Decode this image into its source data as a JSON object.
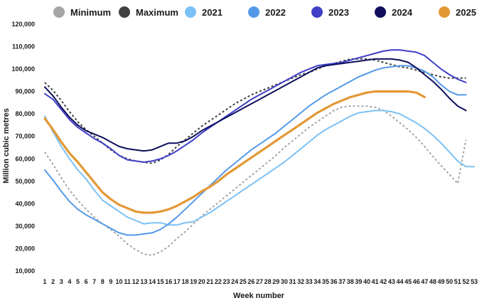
{
  "chart_data": {
    "type": "line",
    "title": "",
    "xlabel": "Week number",
    "ylabel": "Million cubic metres",
    "ylim": [
      10000,
      120000
    ],
    "yticks": [
      10000,
      20000,
      30000,
      40000,
      50000,
      60000,
      70000,
      80000,
      90000,
      100000,
      110000,
      120000
    ],
    "ytick_labels": [
      "10,000",
      "20,000",
      "30,000",
      "40,000",
      "50,000",
      "60,000",
      "70,000",
      "80,000",
      "90,000",
      "100,000",
      "110,000",
      "120,000"
    ],
    "xlim": [
      1,
      53
    ],
    "xticks": [
      1,
      2,
      3,
      4,
      5,
      6,
      7,
      8,
      9,
      10,
      11,
      12,
      13,
      14,
      15,
      16,
      17,
      18,
      19,
      20,
      21,
      22,
      23,
      24,
      25,
      26,
      27,
      28,
      29,
      30,
      31,
      32,
      33,
      34,
      35,
      36,
      37,
      38,
      39,
      40,
      41,
      42,
      43,
      44,
      45,
      46,
      47,
      48,
      49,
      50,
      51,
      52,
      53
    ],
    "grid": false,
    "legend_position": "top",
    "series": [
      {
        "name": "Minimum",
        "color": "#a6a6a6",
        "dash": true,
        "width": 2,
        "x": [
          1,
          2,
          3,
          4,
          5,
          6,
          7,
          8,
          9,
          10,
          11,
          12,
          13,
          14,
          15,
          16,
          17,
          18,
          19,
          20,
          21,
          22,
          23,
          24,
          25,
          26,
          27,
          28,
          29,
          30,
          31,
          32,
          33,
          34,
          35,
          36,
          37,
          38,
          39,
          40,
          41,
          42,
          43,
          44,
          45,
          46,
          47,
          48,
          49,
          50,
          51,
          52
        ],
        "y": [
          63000,
          57500,
          51500,
          46000,
          41500,
          37500,
          34000,
          31000,
          28500,
          25500,
          22000,
          19500,
          17500,
          17000,
          18500,
          21000,
          24500,
          27500,
          31000,
          34500,
          37500,
          40500,
          43500,
          46500,
          49500,
          52500,
          55500,
          58500,
          61500,
          65000,
          68000,
          71000,
          74000,
          76500,
          79000,
          81500,
          83000,
          83500,
          83500,
          83500,
          83000,
          81500,
          79000,
          76000,
          73000,
          69500,
          65500,
          61000,
          57000,
          53000,
          49000,
          68500
        ]
      },
      {
        "name": "Maximum",
        "color": "#404040",
        "dash": true,
        "width": 2,
        "x": [
          1,
          2,
          3,
          4,
          5,
          6,
          7,
          8,
          9,
          10,
          11,
          12,
          13,
          14,
          15,
          16,
          17,
          18,
          19,
          20,
          21,
          22,
          23,
          24,
          25,
          26,
          27,
          28,
          29,
          30,
          31,
          32,
          33,
          34,
          35,
          36,
          37,
          38,
          39,
          40,
          41,
          42,
          43,
          44,
          45,
          46,
          47,
          48,
          49,
          50,
          51,
          52
        ],
        "y": [
          94000,
          90500,
          86000,
          81000,
          76500,
          73000,
          70000,
          67000,
          64000,
          61500,
          60000,
          59000,
          58500,
          58000,
          59500,
          62000,
          65500,
          68500,
          71500,
          74500,
          77000,
          79500,
          82000,
          84500,
          86500,
          88500,
          90000,
          91500,
          93000,
          94500,
          96000,
          97500,
          98500,
          100000,
          101500,
          102500,
          103500,
          104500,
          104500,
          104500,
          104000,
          103000,
          102000,
          101000,
          100500,
          99500,
          98500,
          97500,
          96500,
          96000,
          96000,
          96000
        ]
      },
      {
        "name": "2021",
        "color": "#7cc1f5",
        "dash": false,
        "width": 2,
        "x": [
          1,
          2,
          3,
          4,
          5,
          6,
          7,
          8,
          9,
          10,
          11,
          12,
          13,
          14,
          15,
          16,
          17,
          18,
          19,
          20,
          21,
          22,
          23,
          24,
          25,
          26,
          27,
          28,
          29,
          30,
          31,
          32,
          33,
          34,
          35,
          36,
          37,
          38,
          39,
          40,
          41,
          42,
          43,
          44,
          45,
          46,
          47,
          48,
          49,
          50,
          51,
          52,
          53
        ],
        "y": [
          79000,
          72000,
          65500,
          60000,
          55000,
          51000,
          46000,
          41500,
          39000,
          36500,
          34000,
          32500,
          31000,
          31500,
          31500,
          30500,
          30500,
          31500,
          32000,
          34000,
          36000,
          38500,
          41000,
          43500,
          46000,
          48500,
          51000,
          53500,
          56000,
          58500,
          61500,
          64500,
          67500,
          70500,
          73000,
          75000,
          77000,
          79000,
          80500,
          81000,
          81500,
          81500,
          81000,
          80000,
          78000,
          76000,
          73500,
          70500,
          67000,
          63000,
          59000,
          56500,
          56500
        ]
      },
      {
        "name": "2022",
        "color": "#5499e8",
        "dash": false,
        "width": 2,
        "x": [
          1,
          2,
          3,
          4,
          5,
          6,
          7,
          8,
          9,
          10,
          11,
          12,
          13,
          14,
          15,
          16,
          17,
          18,
          19,
          20,
          21,
          22,
          23,
          24,
          25,
          26,
          27,
          28,
          29,
          30,
          31,
          32,
          33,
          34,
          35,
          36,
          37,
          38,
          39,
          40,
          41,
          42,
          43,
          44,
          45,
          46,
          47,
          48,
          49,
          50,
          51,
          52
        ],
        "y": [
          55000,
          50500,
          45500,
          41000,
          37500,
          35000,
          33000,
          31000,
          29000,
          27000,
          26000,
          26000,
          26500,
          27000,
          28500,
          31000,
          34000,
          37500,
          41000,
          44500,
          48000,
          51500,
          55000,
          58000,
          61000,
          64000,
          66500,
          69000,
          71500,
          74500,
          77500,
          80500,
          83500,
          86000,
          88500,
          90500,
          92500,
          94500,
          96500,
          98000,
          99500,
          100500,
          101000,
          101500,
          101500,
          100500,
          99000,
          96500,
          93000,
          90000,
          88500,
          88500
        ]
      },
      {
        "name": "2023",
        "color": "#3f3fc8",
        "dash": false,
        "width": 2,
        "x": [
          1,
          2,
          3,
          4,
          5,
          6,
          7,
          8,
          9,
          10,
          11,
          12,
          13,
          14,
          15,
          16,
          17,
          18,
          19,
          20,
          21,
          22,
          23,
          24,
          25,
          26,
          27,
          28,
          29,
          30,
          31,
          32,
          33,
          34,
          35,
          36,
          37,
          38,
          39,
          40,
          41,
          42,
          43,
          44,
          45,
          46,
          47,
          48,
          49,
          50,
          51,
          52
        ],
        "y": [
          89000,
          86500,
          82000,
          77500,
          74000,
          71500,
          69000,
          67000,
          64500,
          61500,
          59500,
          59000,
          58500,
          59000,
          60000,
          61500,
          63500,
          66000,
          68500,
          71500,
          74000,
          76500,
          79000,
          81500,
          84000,
          86500,
          88500,
          90500,
          92500,
          94500,
          96500,
          98500,
          100000,
          101500,
          102000,
          102500,
          103000,
          104000,
          105000,
          106000,
          107000,
          108000,
          108500,
          108500,
          108000,
          107500,
          106000,
          103000,
          100000,
          97500,
          95500,
          94000
        ]
      },
      {
        "name": "2024",
        "color": "#0f0f5c",
        "dash": false,
        "width": 2,
        "x": [
          1,
          2,
          3,
          4,
          5,
          6,
          7,
          8,
          9,
          10,
          11,
          12,
          13,
          14,
          15,
          16,
          17,
          18,
          19,
          20,
          21,
          22,
          23,
          24,
          25,
          26,
          27,
          28,
          29,
          30,
          31,
          32,
          33,
          34,
          35,
          36,
          37,
          38,
          39,
          40,
          41,
          42,
          43,
          44,
          45,
          46,
          47,
          48,
          49,
          50,
          51,
          52
        ],
        "y": [
          92000,
          88000,
          83000,
          78500,
          75000,
          72500,
          71000,
          69500,
          67500,
          65500,
          64500,
          64000,
          63500,
          64000,
          65500,
          67000,
          67000,
          68000,
          70000,
          72500,
          74500,
          76500,
          78500,
          80500,
          82500,
          84500,
          86500,
          88500,
          90500,
          92500,
          94500,
          96500,
          98500,
          100500,
          101500,
          102000,
          102500,
          103000,
          103500,
          104000,
          104500,
          104500,
          104500,
          104000,
          103000,
          100500,
          97500,
          94500,
          91000,
          87000,
          83500,
          81500
        ]
      },
      {
        "name": "2025",
        "color": "#e39835",
        "dash": false,
        "width": 3.2,
        "x": [
          1,
          2,
          3,
          4,
          5,
          6,
          7,
          8,
          9,
          10,
          11,
          12,
          13,
          14,
          15,
          16,
          17,
          18,
          19,
          20,
          21,
          22,
          23,
          24,
          25,
          26,
          27,
          28,
          29,
          30,
          31,
          32,
          33,
          34,
          35,
          36,
          37,
          38,
          39,
          40,
          41,
          42,
          43,
          44,
          45,
          46,
          47
        ],
        "y": [
          78000,
          73000,
          67500,
          62500,
          58500,
          54000,
          49500,
          45000,
          42000,
          39500,
          38000,
          36500,
          36000,
          36000,
          36500,
          37500,
          39000,
          41000,
          43000,
          45500,
          47500,
          50000,
          53000,
          55500,
          58000,
          60500,
          63000,
          65500,
          68000,
          70500,
          73000,
          75500,
          78000,
          80500,
          82500,
          84500,
          86000,
          87500,
          88500,
          89500,
          90000,
          90000,
          90000,
          90000,
          90000,
          89500,
          87500
        ]
      }
    ]
  }
}
